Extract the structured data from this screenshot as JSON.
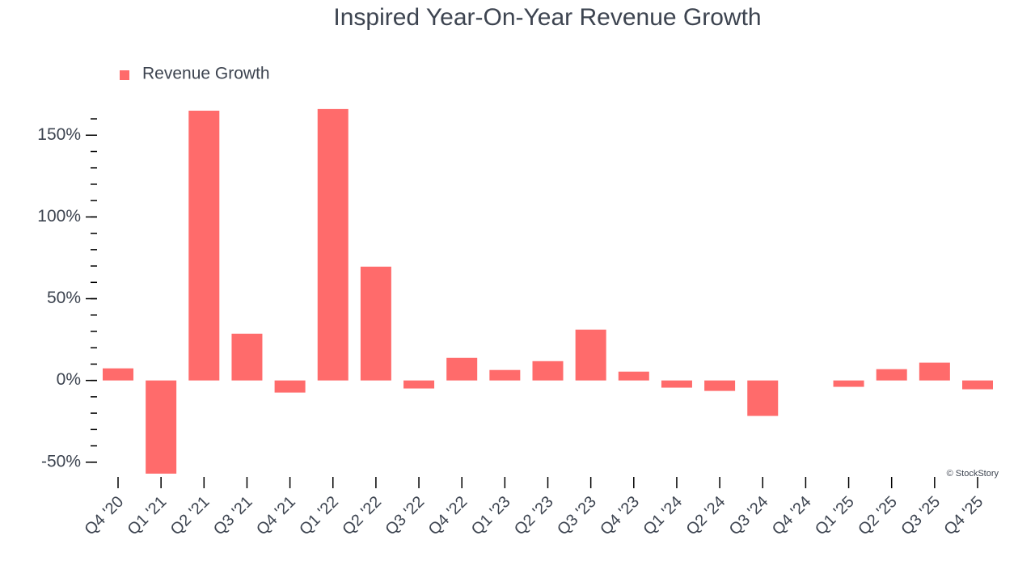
{
  "chart_data": {
    "type": "bar",
    "title": "Inspired Year-On-Year Revenue Growth",
    "watermark": "© StockStory",
    "categories": [
      "Q4 '20",
      "Q1 '21",
      "Q2 '21",
      "Q3 '21",
      "Q4 '21",
      "Q1 '22",
      "Q2 '22",
      "Q3 '22",
      "Q4 '22",
      "Q1 '23",
      "Q2 '23",
      "Q3 '23",
      "Q4 '23",
      "Q1 '24",
      "Q2 '24",
      "Q3 '24",
      "Q4 '24",
      "Q1 '25",
      "Q2 '25",
      "Q3 '25",
      "Q4 '25"
    ],
    "series": [
      {
        "name": "Revenue Growth",
        "color": "#ff6b6b",
        "values": [
          7.4,
          -57,
          165,
          28.6,
          -7.4,
          166,
          69.6,
          -4.9,
          13.8,
          6.4,
          11.8,
          31.1,
          5.4,
          -4.4,
          -6.4,
          -21.7,
          null,
          -3.9,
          6.9,
          10.9,
          -5.4
        ]
      }
    ],
    "ylim": [
      -59,
      161
    ],
    "yticks": [
      {
        "value": -50,
        "label": "-50%"
      },
      {
        "value": 0,
        "label": "0%"
      },
      {
        "value": 50,
        "label": "50%"
      },
      {
        "value": 100,
        "label": "100%"
      },
      {
        "value": 150,
        "label": "150%"
      }
    ],
    "minor_yticks": [
      -50,
      -40,
      -30,
      -20,
      -10,
      0,
      10,
      20,
      30,
      40,
      50,
      60,
      70,
      80,
      90,
      100,
      110,
      120,
      130,
      140,
      150,
      160
    ],
    "legend": "top-left"
  }
}
